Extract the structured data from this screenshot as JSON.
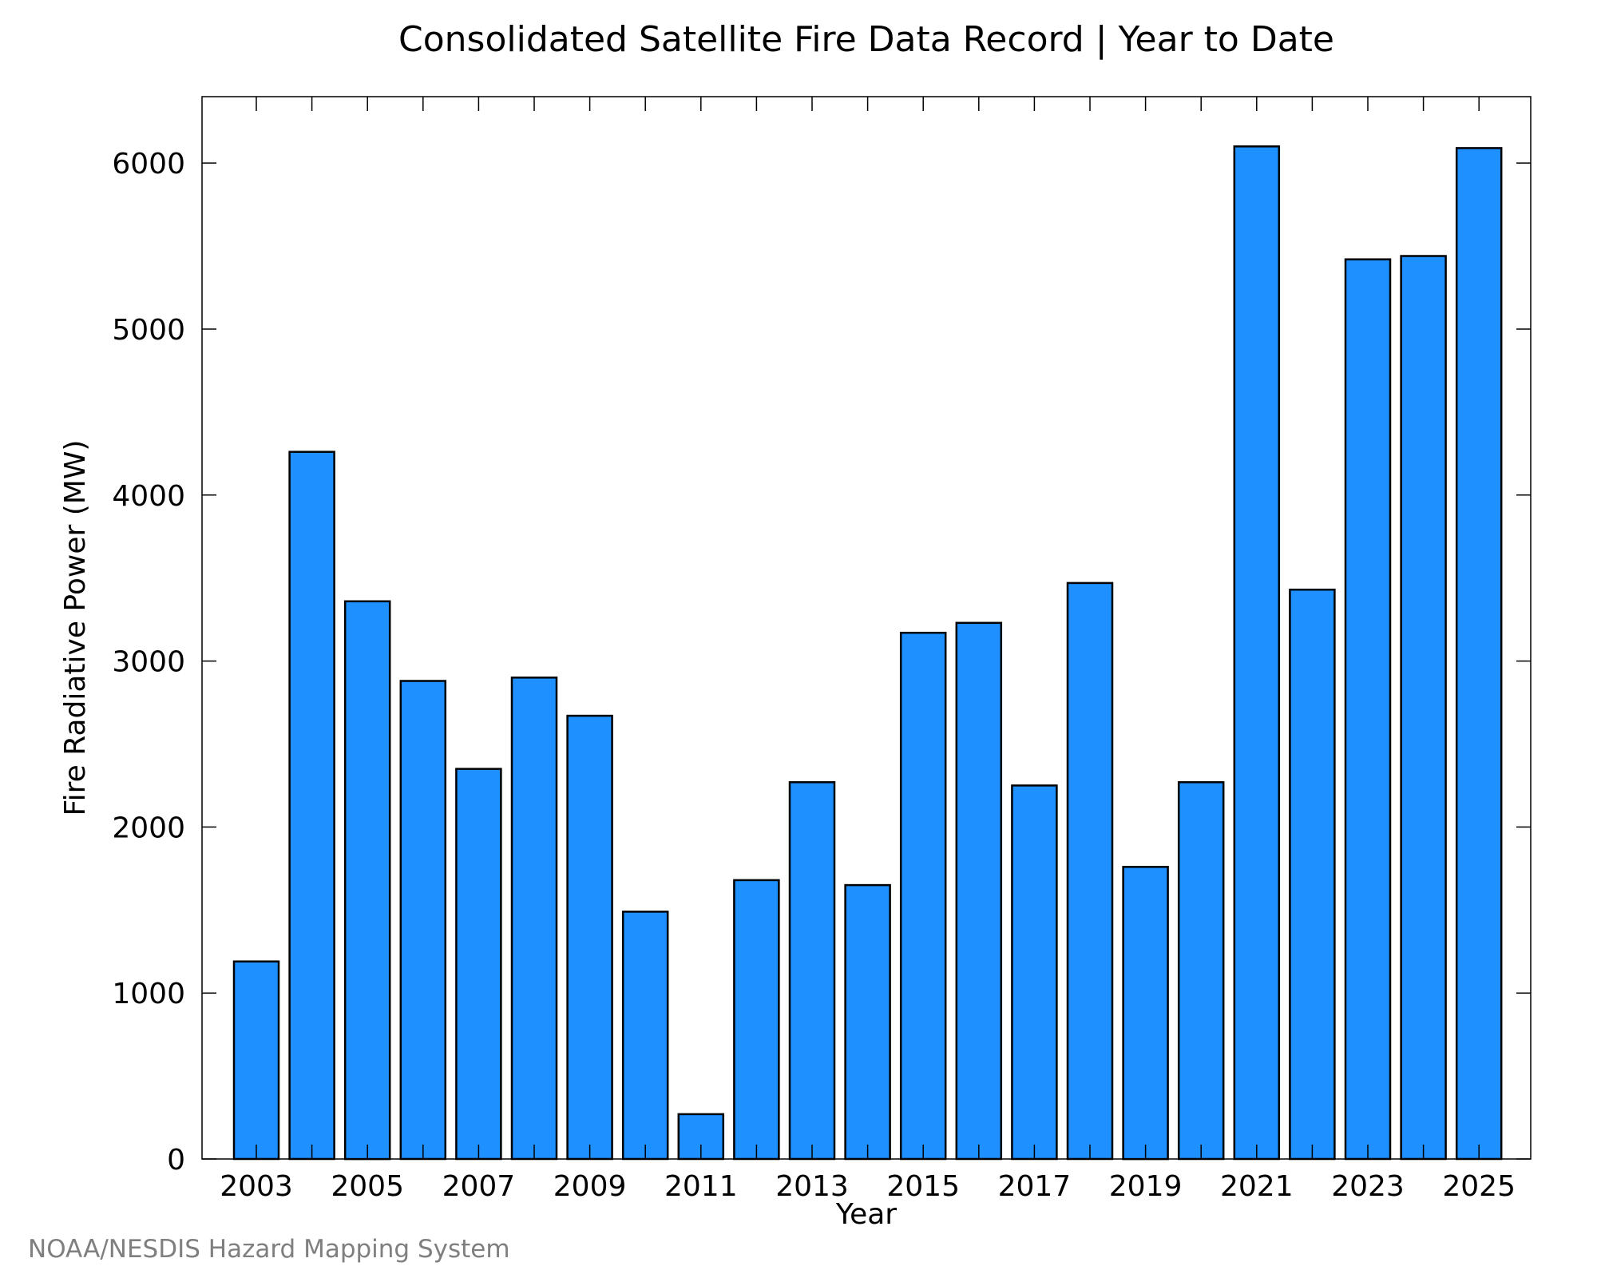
{
  "chart_data": {
    "type": "bar",
    "title": "Consolidated Satellite Fire Data Record | Year to Date",
    "xlabel": "Year",
    "ylabel": "Fire Radiative Power (MW)",
    "ylim": [
      0,
      6400
    ],
    "yticks": [
      0,
      1000,
      2000,
      3000,
      4000,
      5000,
      6000
    ],
    "xtick_labels": [
      "2003",
      "2005",
      "2007",
      "2009",
      "2011",
      "2013",
      "2015",
      "2017",
      "2019",
      "2021",
      "2023",
      "2025"
    ],
    "categories": [
      "2003",
      "2004",
      "2005",
      "2006",
      "2007",
      "2008",
      "2009",
      "2010",
      "2011",
      "2012",
      "2013",
      "2014",
      "2015",
      "2016",
      "2017",
      "2018",
      "2019",
      "2020",
      "2021",
      "2022",
      "2023",
      "2024",
      "2025"
    ],
    "values": [
      1190,
      4260,
      3360,
      2880,
      2350,
      2900,
      2670,
      1490,
      270,
      1680,
      2270,
      1650,
      3170,
      3230,
      2250,
      3470,
      1760,
      2270,
      6100,
      3430,
      5420,
      5440,
      6090
    ],
    "bar_color": "#1e90ff",
    "grid": false,
    "legend": "none"
  },
  "footer": {
    "source": "NOAA/NESDIS Hazard Mapping System"
  }
}
